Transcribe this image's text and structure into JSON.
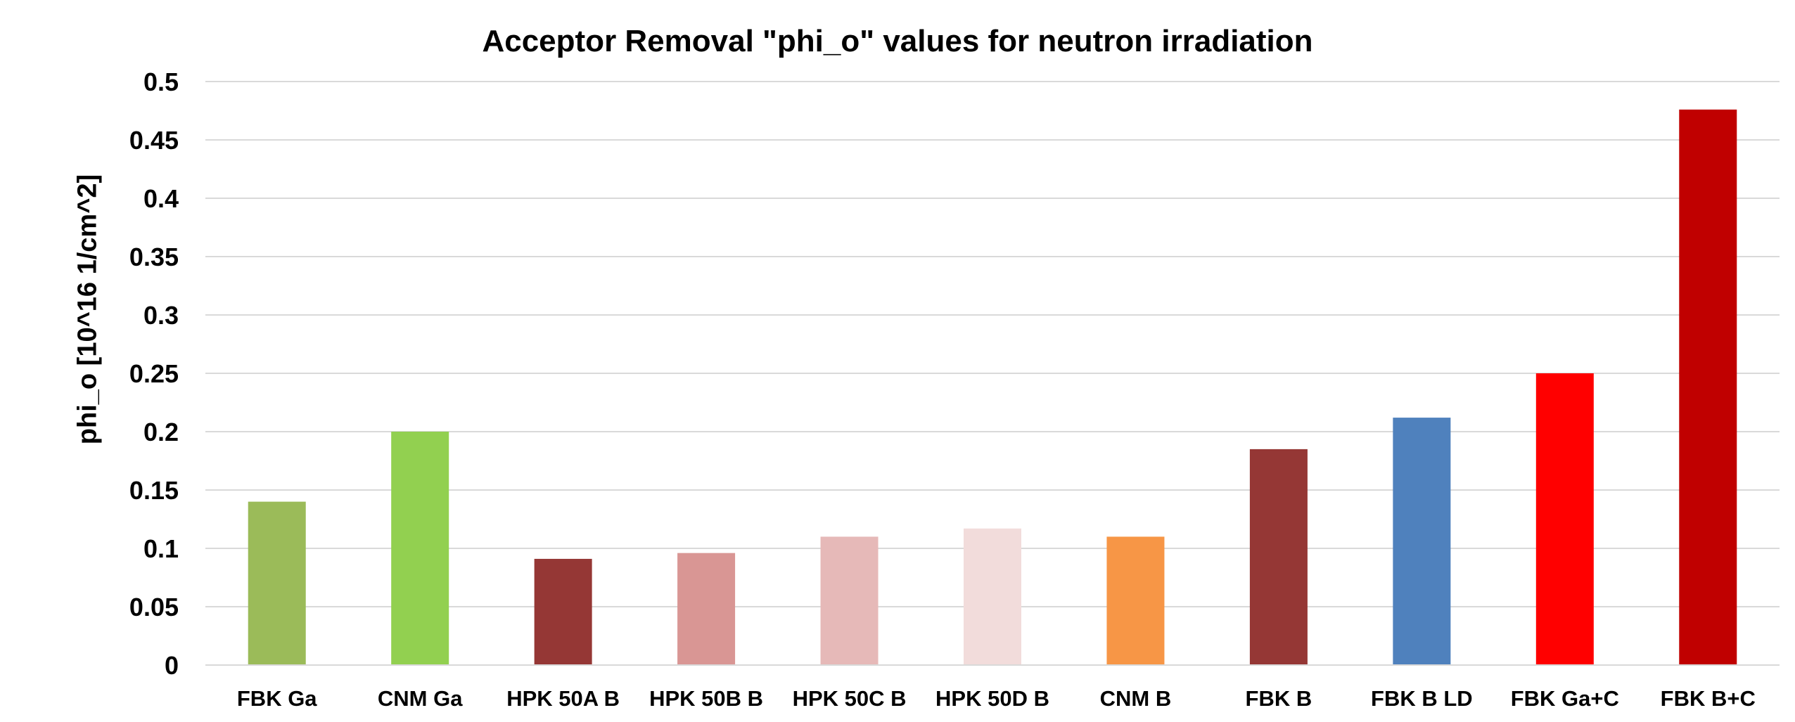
{
  "chart_data": {
    "type": "bar",
    "title": "Acceptor Removal \"phi_o\" values for neutron irradiation",
    "xlabel": "",
    "ylabel": "phi_o [10^16 1/cm^2]",
    "ylim": [
      0,
      0.5
    ],
    "yticks": [
      "0",
      "0.05",
      "0.1",
      "0.15",
      "0.2",
      "0.25",
      "0.3",
      "0.35",
      "0.4",
      "0.45",
      "0.5"
    ],
    "grid": true,
    "legend": "none",
    "categories": [
      "FBK Ga",
      "CNM Ga",
      "HPK 50A B",
      "HPK 50B B",
      "HPK 50C B",
      "HPK 50D B",
      "CNM B",
      "FBK B",
      "FBK B LD",
      "FBK Ga+C",
      "FBK B+C"
    ],
    "values": [
      0.14,
      0.2,
      0.091,
      0.096,
      0.11,
      0.117,
      0.11,
      0.185,
      0.212,
      0.25,
      0.476
    ],
    "colors": [
      "#9BBB59",
      "#92D050",
      "#953735",
      "#D99694",
      "#E6B9B8",
      "#F2DCDB",
      "#F79646",
      "#953735",
      "#4F81BD",
      "#FF0000",
      "#C00000"
    ]
  }
}
